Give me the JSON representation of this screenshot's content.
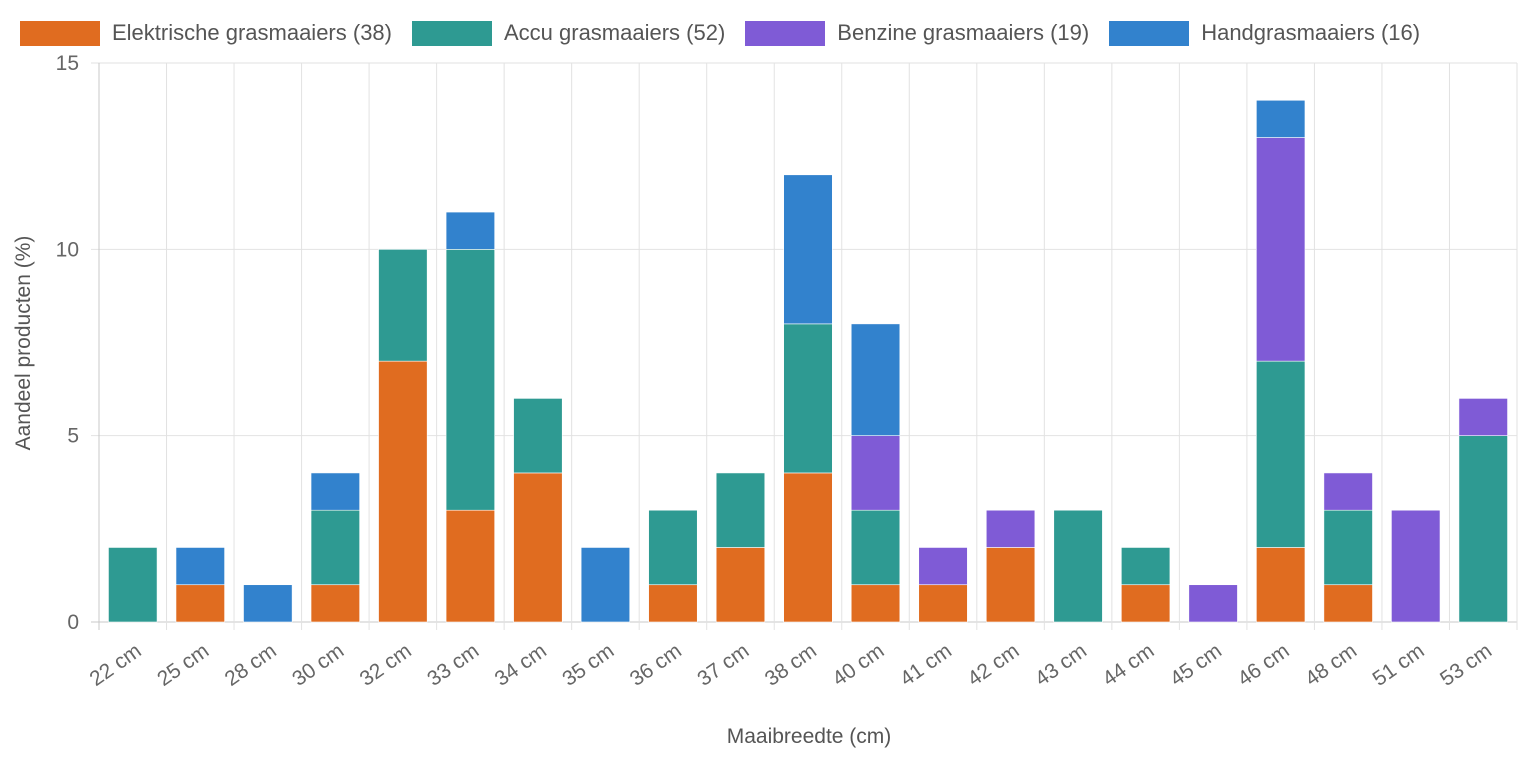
{
  "chart_data": {
    "type": "bar",
    "stacked": true,
    "title": "",
    "xlabel": "Maaibreedte (cm)",
    "ylabel": "Aandeel producten (%)",
    "ylim": [
      0,
      15
    ],
    "yticks": [
      0,
      5,
      10,
      15
    ],
    "grid": true,
    "legend_position": "top",
    "categories": [
      "22 cm",
      "25 cm",
      "28 cm",
      "30 cm",
      "32 cm",
      "33 cm",
      "34 cm",
      "35 cm",
      "36 cm",
      "37 cm",
      "38 cm",
      "40 cm",
      "41 cm",
      "42 cm",
      "43 cm",
      "44 cm",
      "45 cm",
      "46 cm",
      "48 cm",
      "51 cm",
      "53 cm"
    ],
    "series": [
      {
        "name": "Elektrische grasmaaiers (38)",
        "color": "#e06c20",
        "values": [
          0,
          1,
          0,
          1,
          7,
          3,
          4,
          0,
          1,
          2,
          4,
          1,
          1,
          2,
          0,
          1,
          0,
          2,
          1,
          0,
          0
        ]
      },
      {
        "name": "Accu grasmaaiers (52)",
        "color": "#2e9a92",
        "values": [
          2,
          0,
          0,
          2,
          3,
          7,
          2,
          0,
          2,
          2,
          4,
          2,
          0,
          0,
          3,
          1,
          0,
          5,
          2,
          0,
          5
        ]
      },
      {
        "name": "Benzine grasmaaiers (19)",
        "color": "#7f5bd6",
        "values": [
          0,
          0,
          0,
          0,
          0,
          0,
          0,
          0,
          0,
          0,
          0,
          2,
          1,
          1,
          0,
          0,
          1,
          6,
          1,
          3,
          1
        ]
      },
      {
        "name": "Handgrasmaaiers (16)",
        "color": "#3282cd",
        "values": [
          0,
          1,
          1,
          1,
          0,
          1,
          0,
          2,
          0,
          0,
          4,
          3,
          0,
          0,
          0,
          0,
          0,
          1,
          0,
          0,
          0
        ]
      }
    ]
  }
}
